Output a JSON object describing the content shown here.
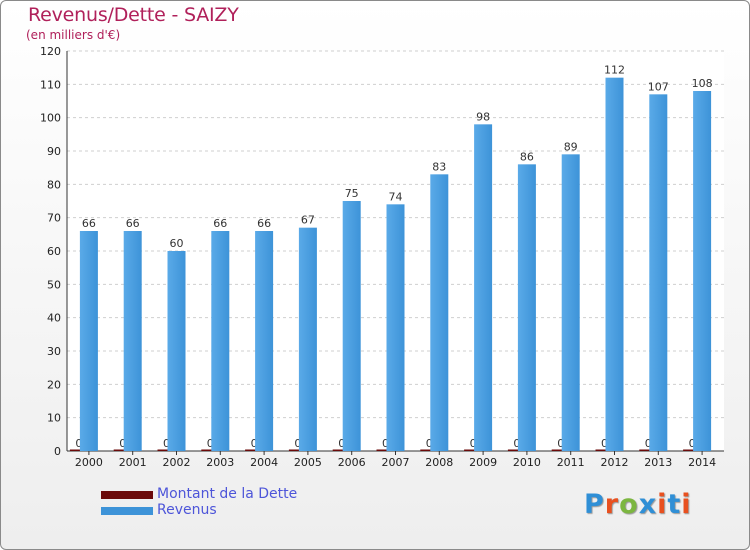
{
  "header": {
    "title": "Revenus/Dette - SAIZY",
    "subtitle": "(en milliers d'€)"
  },
  "legend": {
    "items": [
      {
        "label": "Montant de la Dette",
        "color": "#6b0a0a"
      },
      {
        "label": "Revenus",
        "color": "#3d93d8"
      }
    ]
  },
  "logo": {
    "text": "Proxiti",
    "colors": [
      "#2f8fd6",
      "#e8501f",
      "#7cb640",
      "#2f8fd6",
      "#e8501f",
      "#2f8fd6",
      "#e8501f"
    ]
  },
  "chart_data": {
    "type": "bar",
    "title": "Revenus/Dette - SAIZY",
    "ylabel": "(en milliers d'€)",
    "xlabel": "",
    "ylim": [
      0,
      120
    ],
    "yticks": [
      0,
      10,
      20,
      30,
      40,
      50,
      60,
      70,
      80,
      90,
      100,
      110,
      120
    ],
    "grid": true,
    "legend_position": "bottom-left",
    "categories": [
      "2000",
      "2001",
      "2002",
      "2003",
      "2004",
      "2005",
      "2006",
      "2007",
      "2008",
      "2009",
      "2010",
      "2011",
      "2012",
      "2013",
      "2014"
    ],
    "series": [
      {
        "name": "Montant de la Dette",
        "color": "#6b0a0a",
        "values": [
          0,
          0,
          0,
          0,
          0,
          0,
          0,
          0,
          0,
          0,
          0,
          0,
          0,
          0,
          0
        ]
      },
      {
        "name": "Revenus",
        "color": "#3d93d8",
        "values": [
          66,
          66,
          60,
          66,
          66,
          67,
          75,
          74,
          83,
          98,
          86,
          89,
          112,
          107,
          108
        ]
      }
    ]
  }
}
